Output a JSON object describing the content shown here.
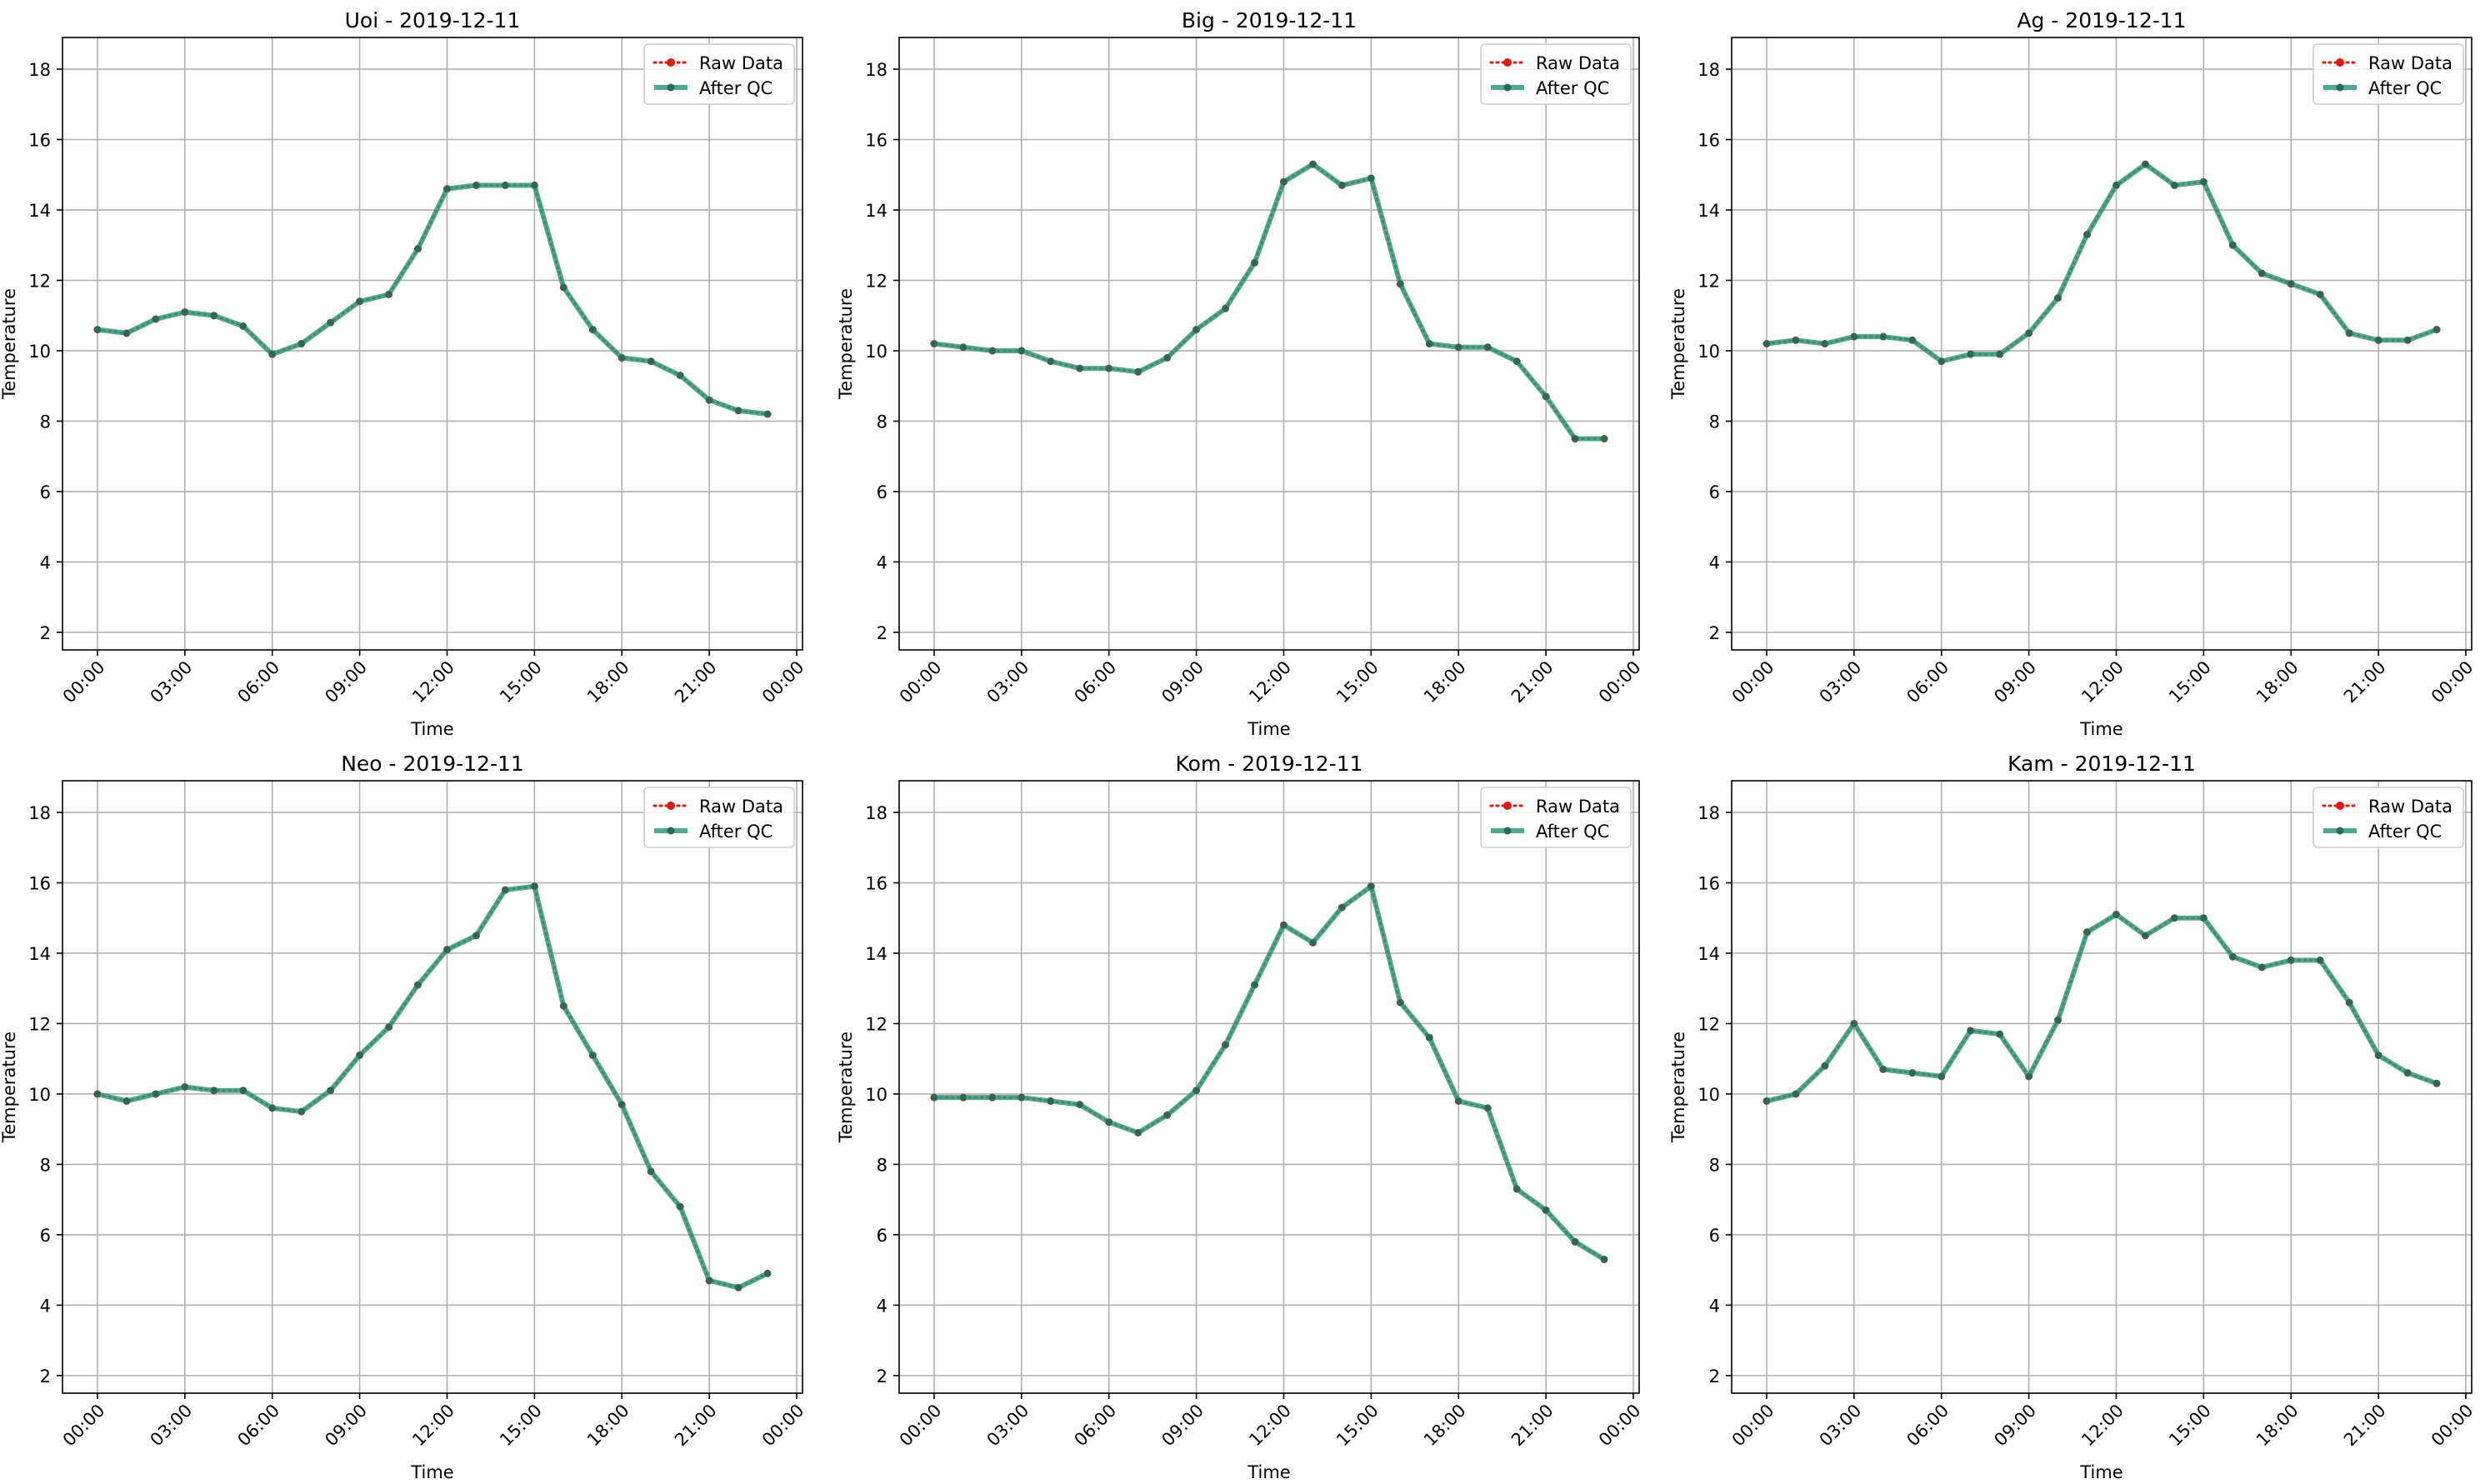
{
  "chart_data": [
    {
      "type": "line",
      "title": "Uoi - 2019-12-11",
      "xlabel": "Time",
      "ylabel": "Temperature",
      "ylim": [
        1.5,
        18.9
      ],
      "yticks": [
        2,
        4,
        6,
        8,
        10,
        12,
        14,
        16,
        18
      ],
      "xlim": [
        -1.2,
        24.2
      ],
      "x": [
        0,
        1,
        2,
        3,
        4,
        5,
        6,
        7,
        8,
        9,
        10,
        11,
        12,
        13,
        14,
        15,
        16,
        17,
        18,
        19,
        20,
        21,
        22,
        23
      ],
      "xticks": [
        0,
        3,
        6,
        9,
        12,
        15,
        18,
        21,
        24
      ],
      "xtick_labels": [
        "00:00",
        "03:00",
        "06:00",
        "09:00",
        "12:00",
        "15:00",
        "18:00",
        "21:00",
        "00:00"
      ],
      "grid": true,
      "legend_position": "upper right",
      "series": [
        {
          "name": "Raw Data",
          "values": [
            10.6,
            10.5,
            10.9,
            11.1,
            11.0,
            10.7,
            9.9,
            10.2,
            10.8,
            11.4,
            11.6,
            12.9,
            14.6,
            14.7,
            14.7,
            14.7,
            11.8,
            10.6,
            9.8,
            9.7,
            9.3,
            8.6,
            8.3,
            8.2
          ]
        },
        {
          "name": "After QC",
          "values": [
            10.6,
            10.5,
            10.9,
            11.1,
            11.0,
            10.7,
            9.9,
            10.2,
            10.8,
            11.4,
            11.6,
            12.9,
            14.6,
            14.7,
            14.7,
            14.7,
            11.8,
            10.6,
            9.8,
            9.7,
            9.3,
            8.6,
            8.3,
            8.2
          ]
        }
      ]
    },
    {
      "type": "line",
      "title": "Big - 2019-12-11",
      "xlabel": "Time",
      "ylabel": "Temperature",
      "ylim": [
        1.5,
        18.9
      ],
      "yticks": [
        2,
        4,
        6,
        8,
        10,
        12,
        14,
        16,
        18
      ],
      "xlim": [
        -1.2,
        24.2
      ],
      "x": [
        0,
        1,
        2,
        3,
        4,
        5,
        6,
        7,
        8,
        9,
        10,
        11,
        12,
        13,
        14,
        15,
        16,
        17,
        18,
        19,
        20,
        21,
        22,
        23
      ],
      "xticks": [
        0,
        3,
        6,
        9,
        12,
        15,
        18,
        21,
        24
      ],
      "xtick_labels": [
        "00:00",
        "03:00",
        "06:00",
        "09:00",
        "12:00",
        "15:00",
        "18:00",
        "21:00",
        "00:00"
      ],
      "grid": true,
      "legend_position": "upper right",
      "series": [
        {
          "name": "Raw Data",
          "values": [
            10.2,
            10.1,
            10.0,
            10.0,
            9.7,
            9.5,
            9.5,
            9.4,
            9.8,
            10.6,
            11.2,
            12.5,
            14.8,
            15.3,
            14.7,
            14.9,
            11.9,
            10.2,
            10.1,
            10.1,
            9.7,
            8.7,
            7.5,
            7.5
          ]
        },
        {
          "name": "After QC",
          "values": [
            10.2,
            10.1,
            10.0,
            10.0,
            9.7,
            9.5,
            9.5,
            9.4,
            9.8,
            10.6,
            11.2,
            12.5,
            14.8,
            15.3,
            14.7,
            14.9,
            11.9,
            10.2,
            10.1,
            10.1,
            9.7,
            8.7,
            7.5,
            7.5
          ]
        }
      ]
    },
    {
      "type": "line",
      "title": "Ag - 2019-12-11",
      "xlabel": "Time",
      "ylabel": "Temperature",
      "ylim": [
        1.5,
        18.9
      ],
      "yticks": [
        2,
        4,
        6,
        8,
        10,
        12,
        14,
        16,
        18
      ],
      "xlim": [
        -1.2,
        24.2
      ],
      "x": [
        0,
        1,
        2,
        3,
        4,
        5,
        6,
        7,
        8,
        9,
        10,
        11,
        12,
        13,
        14,
        15,
        16,
        17,
        18,
        19,
        20,
        21,
        22,
        23
      ],
      "xticks": [
        0,
        3,
        6,
        9,
        12,
        15,
        18,
        21,
        24
      ],
      "xtick_labels": [
        "00:00",
        "03:00",
        "06:00",
        "09:00",
        "12:00",
        "15:00",
        "18:00",
        "21:00",
        "00:00"
      ],
      "grid": true,
      "legend_position": "upper right",
      "series": [
        {
          "name": "Raw Data",
          "values": [
            10.2,
            10.3,
            10.2,
            10.4,
            10.4,
            10.3,
            9.7,
            9.9,
            9.9,
            10.5,
            11.5,
            13.3,
            14.7,
            15.3,
            14.7,
            14.8,
            13.0,
            12.2,
            11.9,
            11.6,
            10.5,
            10.3,
            10.3,
            10.6
          ]
        },
        {
          "name": "After QC",
          "values": [
            10.2,
            10.3,
            10.2,
            10.4,
            10.4,
            10.3,
            9.7,
            9.9,
            9.9,
            10.5,
            11.5,
            13.3,
            14.7,
            15.3,
            14.7,
            14.8,
            13.0,
            12.2,
            11.9,
            11.6,
            10.5,
            10.3,
            10.3,
            10.6
          ]
        }
      ]
    },
    {
      "type": "line",
      "title": "Neo - 2019-12-11",
      "xlabel": "Time",
      "ylabel": "Temperature",
      "ylim": [
        1.5,
        18.9
      ],
      "yticks": [
        2,
        4,
        6,
        8,
        10,
        12,
        14,
        16,
        18
      ],
      "xlim": [
        -1.2,
        24.2
      ],
      "x": [
        0,
        1,
        2,
        3,
        4,
        5,
        6,
        7,
        8,
        9,
        10,
        11,
        12,
        13,
        14,
        15,
        16,
        17,
        18,
        19,
        20,
        21,
        22,
        23
      ],
      "xticks": [
        0,
        3,
        6,
        9,
        12,
        15,
        18,
        21,
        24
      ],
      "xtick_labels": [
        "00:00",
        "03:00",
        "06:00",
        "09:00",
        "12:00",
        "15:00",
        "18:00",
        "21:00",
        "00:00"
      ],
      "grid": true,
      "legend_position": "upper right",
      "series": [
        {
          "name": "Raw Data",
          "values": [
            10.0,
            9.8,
            10.0,
            10.2,
            10.1,
            10.1,
            9.6,
            9.5,
            10.1,
            11.1,
            11.9,
            13.1,
            14.1,
            14.5,
            15.8,
            15.9,
            12.5,
            11.1,
            9.7,
            7.8,
            6.8,
            4.7,
            4.5,
            4.9
          ]
        },
        {
          "name": "After QC",
          "values": [
            10.0,
            9.8,
            10.0,
            10.2,
            10.1,
            10.1,
            9.6,
            9.5,
            10.1,
            11.1,
            11.9,
            13.1,
            14.1,
            14.5,
            15.8,
            15.9,
            12.5,
            11.1,
            9.7,
            7.8,
            6.8,
            4.7,
            4.5,
            4.9
          ]
        }
      ]
    },
    {
      "type": "line",
      "title": "Kom - 2019-12-11",
      "xlabel": "Time",
      "ylabel": "Temperature",
      "ylim": [
        1.5,
        18.9
      ],
      "yticks": [
        2,
        4,
        6,
        8,
        10,
        12,
        14,
        16,
        18
      ],
      "xlim": [
        -1.2,
        24.2
      ],
      "x": [
        0,
        1,
        2,
        3,
        4,
        5,
        6,
        7,
        8,
        9,
        10,
        11,
        12,
        13,
        14,
        15,
        16,
        17,
        18,
        19,
        20,
        21,
        22,
        23
      ],
      "xticks": [
        0,
        3,
        6,
        9,
        12,
        15,
        18,
        21,
        24
      ],
      "xtick_labels": [
        "00:00",
        "03:00",
        "06:00",
        "09:00",
        "12:00",
        "15:00",
        "18:00",
        "21:00",
        "00:00"
      ],
      "grid": true,
      "legend_position": "upper right",
      "series": [
        {
          "name": "Raw Data",
          "values": [
            9.9,
            9.9,
            9.9,
            9.9,
            9.8,
            9.7,
            9.2,
            8.9,
            9.4,
            10.1,
            11.4,
            13.1,
            14.8,
            14.3,
            15.3,
            15.9,
            12.6,
            11.6,
            9.8,
            9.6,
            7.3,
            6.7,
            5.8,
            5.3
          ]
        },
        {
          "name": "After QC",
          "values": [
            9.9,
            9.9,
            9.9,
            9.9,
            9.8,
            9.7,
            9.2,
            8.9,
            9.4,
            10.1,
            11.4,
            13.1,
            14.8,
            14.3,
            15.3,
            15.9,
            12.6,
            11.6,
            9.8,
            9.6,
            7.3,
            6.7,
            5.8,
            5.3
          ]
        }
      ]
    },
    {
      "type": "line",
      "title": "Kam - 2019-12-11",
      "xlabel": "Time",
      "ylabel": "Temperature",
      "ylim": [
        1.5,
        18.9
      ],
      "yticks": [
        2,
        4,
        6,
        8,
        10,
        12,
        14,
        16,
        18
      ],
      "xlim": [
        -1.2,
        24.2
      ],
      "x": [
        0,
        1,
        2,
        3,
        4,
        5,
        6,
        7,
        8,
        9,
        10,
        11,
        12,
        13,
        14,
        15,
        16,
        17,
        18,
        19,
        20,
        21,
        22,
        23
      ],
      "xticks": [
        0,
        3,
        6,
        9,
        12,
        15,
        18,
        21,
        24
      ],
      "xtick_labels": [
        "00:00",
        "03:00",
        "06:00",
        "09:00",
        "12:00",
        "15:00",
        "18:00",
        "21:00",
        "00:00"
      ],
      "grid": true,
      "legend_position": "upper right",
      "series": [
        {
          "name": "Raw Data",
          "values": [
            9.8,
            10.0,
            10.8,
            12.0,
            10.7,
            10.6,
            10.5,
            11.8,
            11.7,
            10.5,
            12.1,
            14.6,
            15.1,
            14.5,
            15.0,
            15.0,
            13.9,
            13.6,
            13.8,
            13.8,
            12.6,
            11.1,
            10.6,
            10.3
          ]
        },
        {
          "name": "After QC",
          "values": [
            9.8,
            10.0,
            10.8,
            12.0,
            10.7,
            10.6,
            10.5,
            11.8,
            11.7,
            10.5,
            12.1,
            14.6,
            15.1,
            14.5,
            15.0,
            15.0,
            13.9,
            13.6,
            13.8,
            13.8,
            12.6,
            11.1,
            10.6,
            10.3
          ]
        }
      ]
    }
  ],
  "colors": {
    "raw": "#e8160f",
    "after_qc": "#2f9b7c",
    "after_qc_marker": "#256b58",
    "grid": "#b0b0b0",
    "axes": "#000000"
  }
}
